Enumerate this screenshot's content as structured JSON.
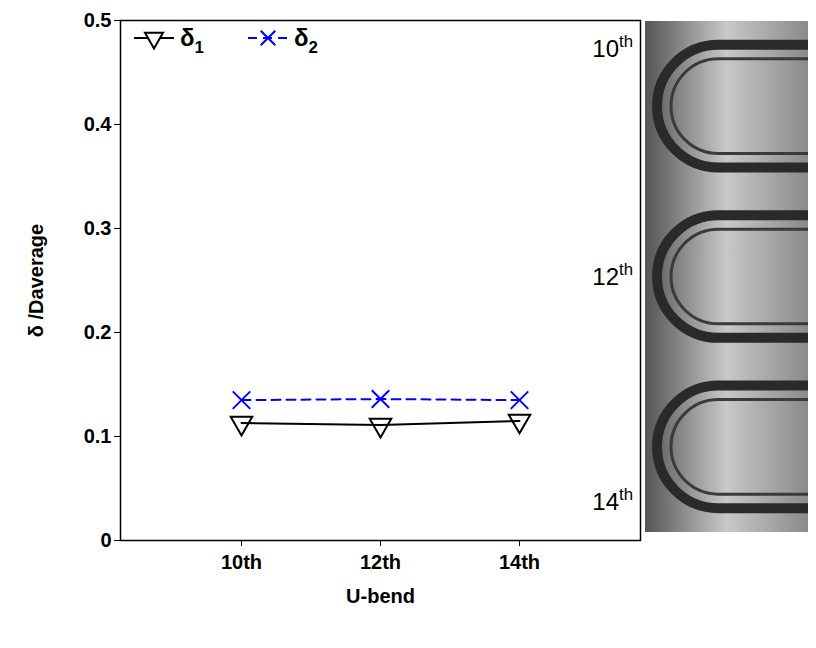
{
  "chart_data": {
    "type": "line",
    "categories": [
      "10th",
      "12th",
      "14th"
    ],
    "series": [
      {
        "name": "δ1",
        "color": "#000000",
        "marker": "triangle-down",
        "line_style": "solid",
        "values": [
          0.113,
          0.111,
          0.115
        ]
      },
      {
        "name": "δ2",
        "color": "#0000ff",
        "marker": "x",
        "line_style": "dashed",
        "values": [
          0.135,
          0.136,
          0.135
        ]
      }
    ],
    "x_label": "U-bend",
    "y_label": "δ /Daverage",
    "ylim": [
      0,
      0.5
    ],
    "yticks": [
      0,
      0.1,
      0.2,
      0.3,
      0.4,
      0.5
    ],
    "grid": false,
    "legend": "top-left"
  }
}
